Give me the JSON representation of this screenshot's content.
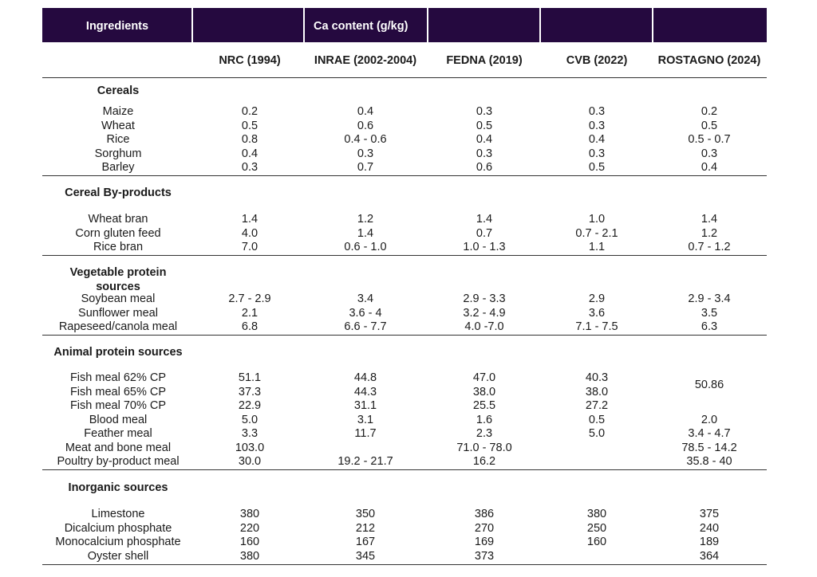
{
  "header": {
    "ingredients": "Ingredients",
    "group": "Ca content (g/kg)"
  },
  "columns": [
    "NRC (1994)",
    "INRAE (2002-2004)",
    "FEDNA (2019)",
    "CVB (2022)",
    "ROSTAGNO (2024)"
  ],
  "sections": [
    {
      "title": "Cereals",
      "rows": [
        {
          "name": "Maize",
          "values": [
            "0.2",
            "0.4",
            "0.3",
            "0.3",
            "0.2"
          ]
        },
        {
          "name": "Wheat",
          "values": [
            "0.5",
            "0.6",
            "0.5",
            "0.3",
            "0.5"
          ]
        },
        {
          "name": "Rice",
          "values": [
            "0.8",
            "0.4 - 0.6",
            "0.4",
            "0.4",
            "0.5 - 0.7"
          ]
        },
        {
          "name": "Sorghum",
          "values": [
            "0.4",
            "0.3",
            "0.3",
            "0.3",
            "0.3"
          ]
        },
        {
          "name": "Barley",
          "values": [
            "0.3",
            "0.7",
            "0.6",
            "0.5",
            "0.4"
          ]
        }
      ]
    },
    {
      "title": "Cereal By-products",
      "rows": [
        {
          "name": "Wheat bran",
          "values": [
            "1.4",
            "1.2",
            "1.4",
            "1.0",
            "1.4"
          ]
        },
        {
          "name": "Corn gluten feed",
          "values": [
            "4.0",
            "1.4",
            "0.7",
            "0.7 - 2.1",
            "1.2"
          ]
        },
        {
          "name": "Rice bran",
          "values": [
            "7.0",
            "0.6 - 1.0",
            "1.0 - 1.3",
            "1.1",
            "0.7 - 1.2"
          ]
        }
      ]
    },
    {
      "title": "Vegetable protein sources",
      "rows": [
        {
          "name": "Soybean meal",
          "values": [
            "2.7 - 2.9",
            "3.4",
            "2.9 - 3.3",
            "2.9",
            "2.9 - 3.4"
          ]
        },
        {
          "name": "Sunflower meal",
          "values": [
            "2.1",
            "3.6 - 4",
            "3.2 - 4.9",
            "3.6",
            "3.5"
          ]
        },
        {
          "name": "Rapeseed/canola meal",
          "values": [
            "6.8",
            "6.6 - 7.7",
            "4.0 -7.0",
            "7.1 - 7.5",
            "6.3"
          ]
        }
      ]
    },
    {
      "title": "Animal protein sources",
      "rows": [
        {
          "name": "Fish meal 62% CP",
          "values": [
            "51.1",
            "44.8",
            "47.0",
            "40.3",
            {
              "text": "50.86",
              "rowspan": 2
            }
          ]
        },
        {
          "name": "Fish meal 65% CP",
          "values": [
            "37.3",
            "44.3",
            "38.0",
            "38.0",
            null
          ]
        },
        {
          "name": "Fish meal 70% CP",
          "values": [
            "22.9",
            "31.1",
            "25.5",
            "27.2",
            null
          ]
        },
        {
          "name": "Blood meal",
          "values": [
            "5.0",
            "3.1",
            "1.6",
            "0.5",
            "2.0"
          ]
        },
        {
          "name": "Feather meal",
          "values": [
            "3.3",
            "11.7",
            "2.3",
            "5.0",
            "3.4 - 4.7"
          ]
        },
        {
          "name": "Meat and bone meal",
          "values": [
            "103.0",
            null,
            "71.0 - 78.0",
            null,
            "78.5 - 14.2"
          ]
        },
        {
          "name": "Poultry by-product meal",
          "values": [
            "30.0",
            "19.2 - 21.7",
            "16.2",
            null,
            "35.8 - 40"
          ]
        }
      ]
    },
    {
      "title": "Inorganic sources",
      "rows": [
        {
          "name": "Limestone",
          "values": [
            "380",
            "350",
            "386",
            "380",
            "375"
          ]
        },
        {
          "name": "Dicalcium phosphate",
          "values": [
            "220",
            "212",
            "270",
            "250",
            "240"
          ]
        },
        {
          "name": "Monocalcium phosphate",
          "values": [
            "160",
            "167",
            "169",
            "160",
            "189"
          ]
        },
        {
          "name": "Oyster shell",
          "values": [
            "380",
            "345",
            "373",
            null,
            "364"
          ]
        }
      ]
    }
  ]
}
